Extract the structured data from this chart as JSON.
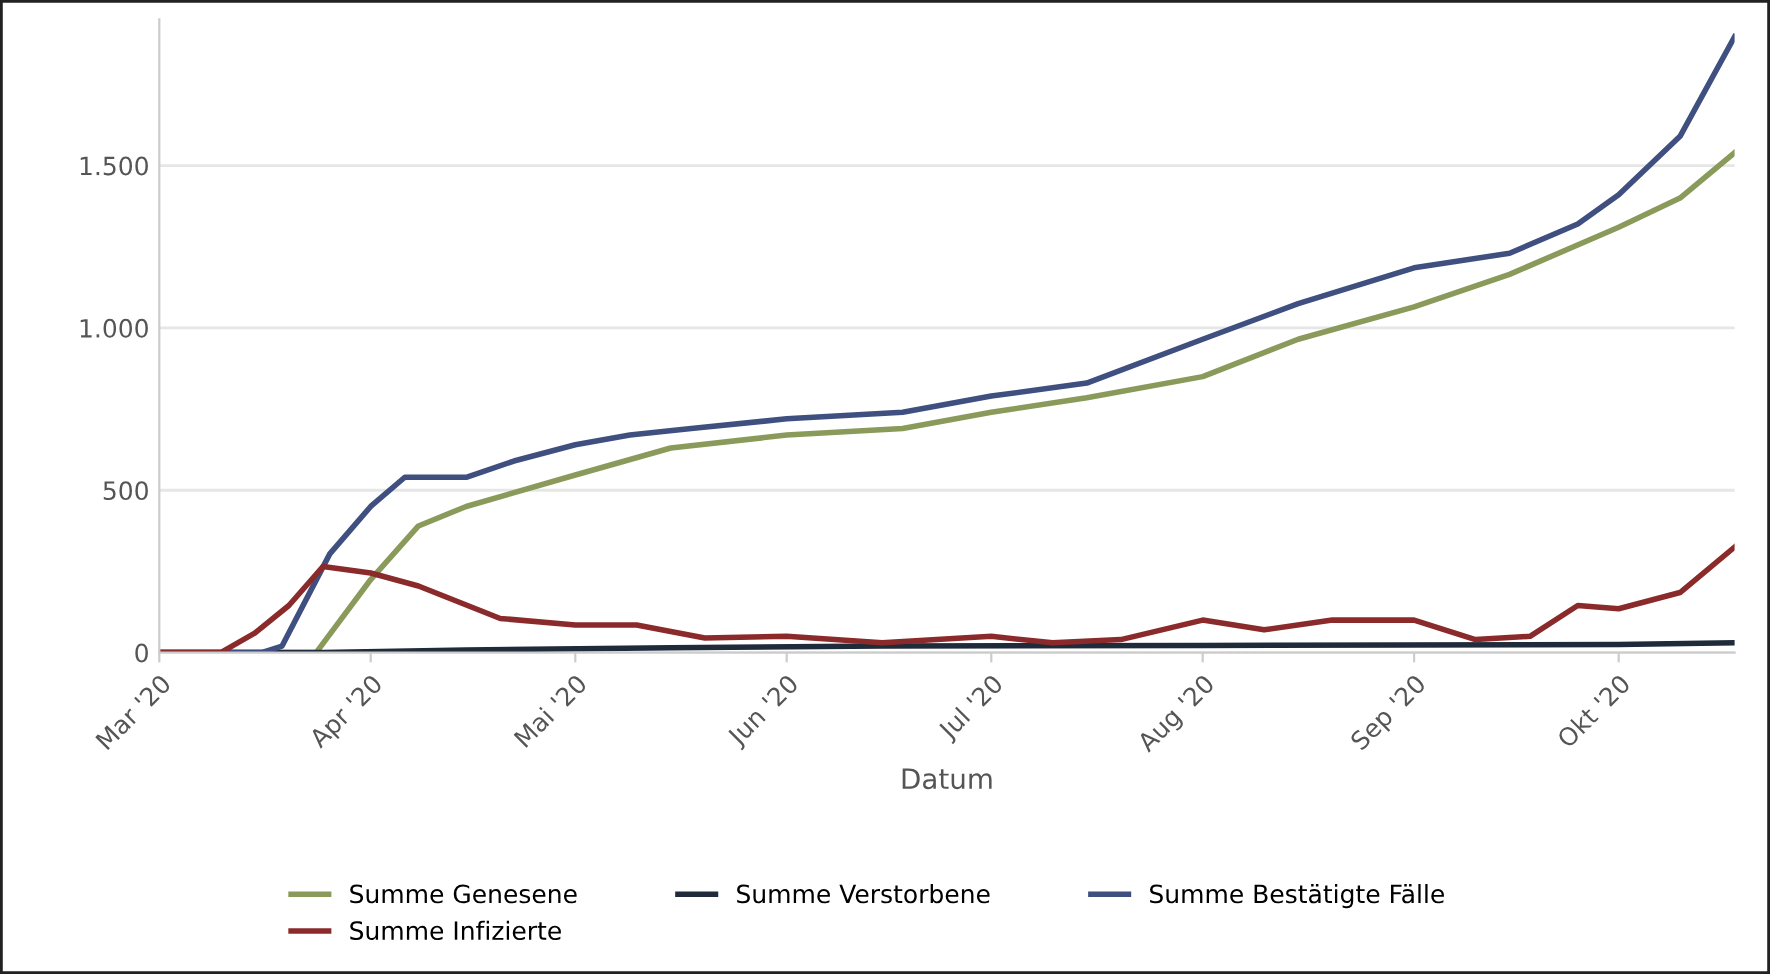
{
  "chart_data": {
    "type": "line",
    "xlabel": "Datum",
    "xlim": [
      "2020-03-01",
      "2020-10-18"
    ],
    "xticks": [
      {
        "value": "2020-03-01",
        "label": "Mar '20"
      },
      {
        "value": "2020-04-01",
        "label": "Apr '20"
      },
      {
        "value": "2020-05-01",
        "label": "Mai '20"
      },
      {
        "value": "2020-06-01",
        "label": "Jun '20"
      },
      {
        "value": "2020-07-01",
        "label": "Jul '20"
      },
      {
        "value": "2020-08-01",
        "label": "Aug '20"
      },
      {
        "value": "2020-09-01",
        "label": "Sep '20"
      },
      {
        "value": "2020-10-01",
        "label": "Okt '20"
      }
    ],
    "ylim": [
      0,
      1950
    ],
    "yticks": [
      0,
      500,
      {
        "value": 1000,
        "label": "1.000"
      },
      {
        "value": 1500,
        "label": "1.500"
      }
    ],
    "grid": "y",
    "legend": "bottom",
    "marker": "none",
    "line_style": "solid",
    "series": [
      {
        "name": "Summe Genesene",
        "color": "#8a9a5b",
        "x": [
          "2020-03-01",
          "2020-03-24",
          "2020-04-01",
          "2020-04-08",
          "2020-04-15",
          "2020-05-01",
          "2020-05-15",
          "2020-06-01",
          "2020-06-18",
          "2020-07-01",
          "2020-07-15",
          "2020-08-01",
          "2020-08-15",
          "2020-09-01",
          "2020-09-15",
          "2020-10-01",
          "2020-10-10",
          "2020-10-18"
        ],
        "values": [
          0,
          0,
          225,
          390,
          450,
          547,
          630,
          670,
          690,
          740,
          785,
          850,
          965,
          1065,
          1165,
          1310,
          1400,
          1540
        ]
      },
      {
        "name": "Summe Verstorbene",
        "color": "#1f2a3a",
        "x": [
          "2020-03-01",
          "2020-03-25",
          "2020-04-15",
          "2020-05-15",
          "2020-06-15",
          "2020-08-01",
          "2020-10-01",
          "2020-10-18"
        ],
        "values": [
          0,
          0,
          8,
          15,
          20,
          22,
          25,
          30
        ]
      },
      {
        "name": "Summe Bestätigte Fälle",
        "color": "#3f4f7f",
        "x": [
          "2020-03-01",
          "2020-03-16",
          "2020-03-19",
          "2020-03-26",
          "2020-04-01",
          "2020-04-06",
          "2020-04-15",
          "2020-04-22",
          "2020-05-01",
          "2020-05-09",
          "2020-05-18",
          "2020-06-01",
          "2020-06-18",
          "2020-07-01",
          "2020-07-15",
          "2020-08-01",
          "2020-08-15",
          "2020-09-01",
          "2020-09-15",
          "2020-09-25",
          "2020-10-01",
          "2020-10-10",
          "2020-10-18"
        ],
        "values": [
          0,
          0,
          20,
          304,
          450,
          540,
          540,
          590,
          640,
          670,
          690,
          720,
          740,
          790,
          830,
          965,
          1075,
          1185,
          1230,
          1320,
          1410,
          1590,
          1897
        ]
      },
      {
        "name": "Summe Infizierte",
        "color": "#8b2a2a",
        "x": [
          "2020-03-01",
          "2020-03-10",
          "2020-03-15",
          "2020-03-20",
          "2020-03-25",
          "2020-04-01",
          "2020-04-08",
          "2020-04-20",
          "2020-05-01",
          "2020-05-10",
          "2020-05-20",
          "2020-06-01",
          "2020-06-15",
          "2020-07-01",
          "2020-07-10",
          "2020-07-20",
          "2020-08-01",
          "2020-08-10",
          "2020-08-20",
          "2020-09-01",
          "2020-09-10",
          "2020-09-18",
          "2020-09-25",
          "2020-10-01",
          "2020-10-10",
          "2020-10-18"
        ],
        "values": [
          0,
          0,
          60,
          145,
          265,
          245,
          205,
          105,
          85,
          85,
          45,
          50,
          30,
          50,
          30,
          40,
          100,
          70,
          100,
          100,
          40,
          50,
          145,
          135,
          185,
          325
        ]
      }
    ]
  }
}
